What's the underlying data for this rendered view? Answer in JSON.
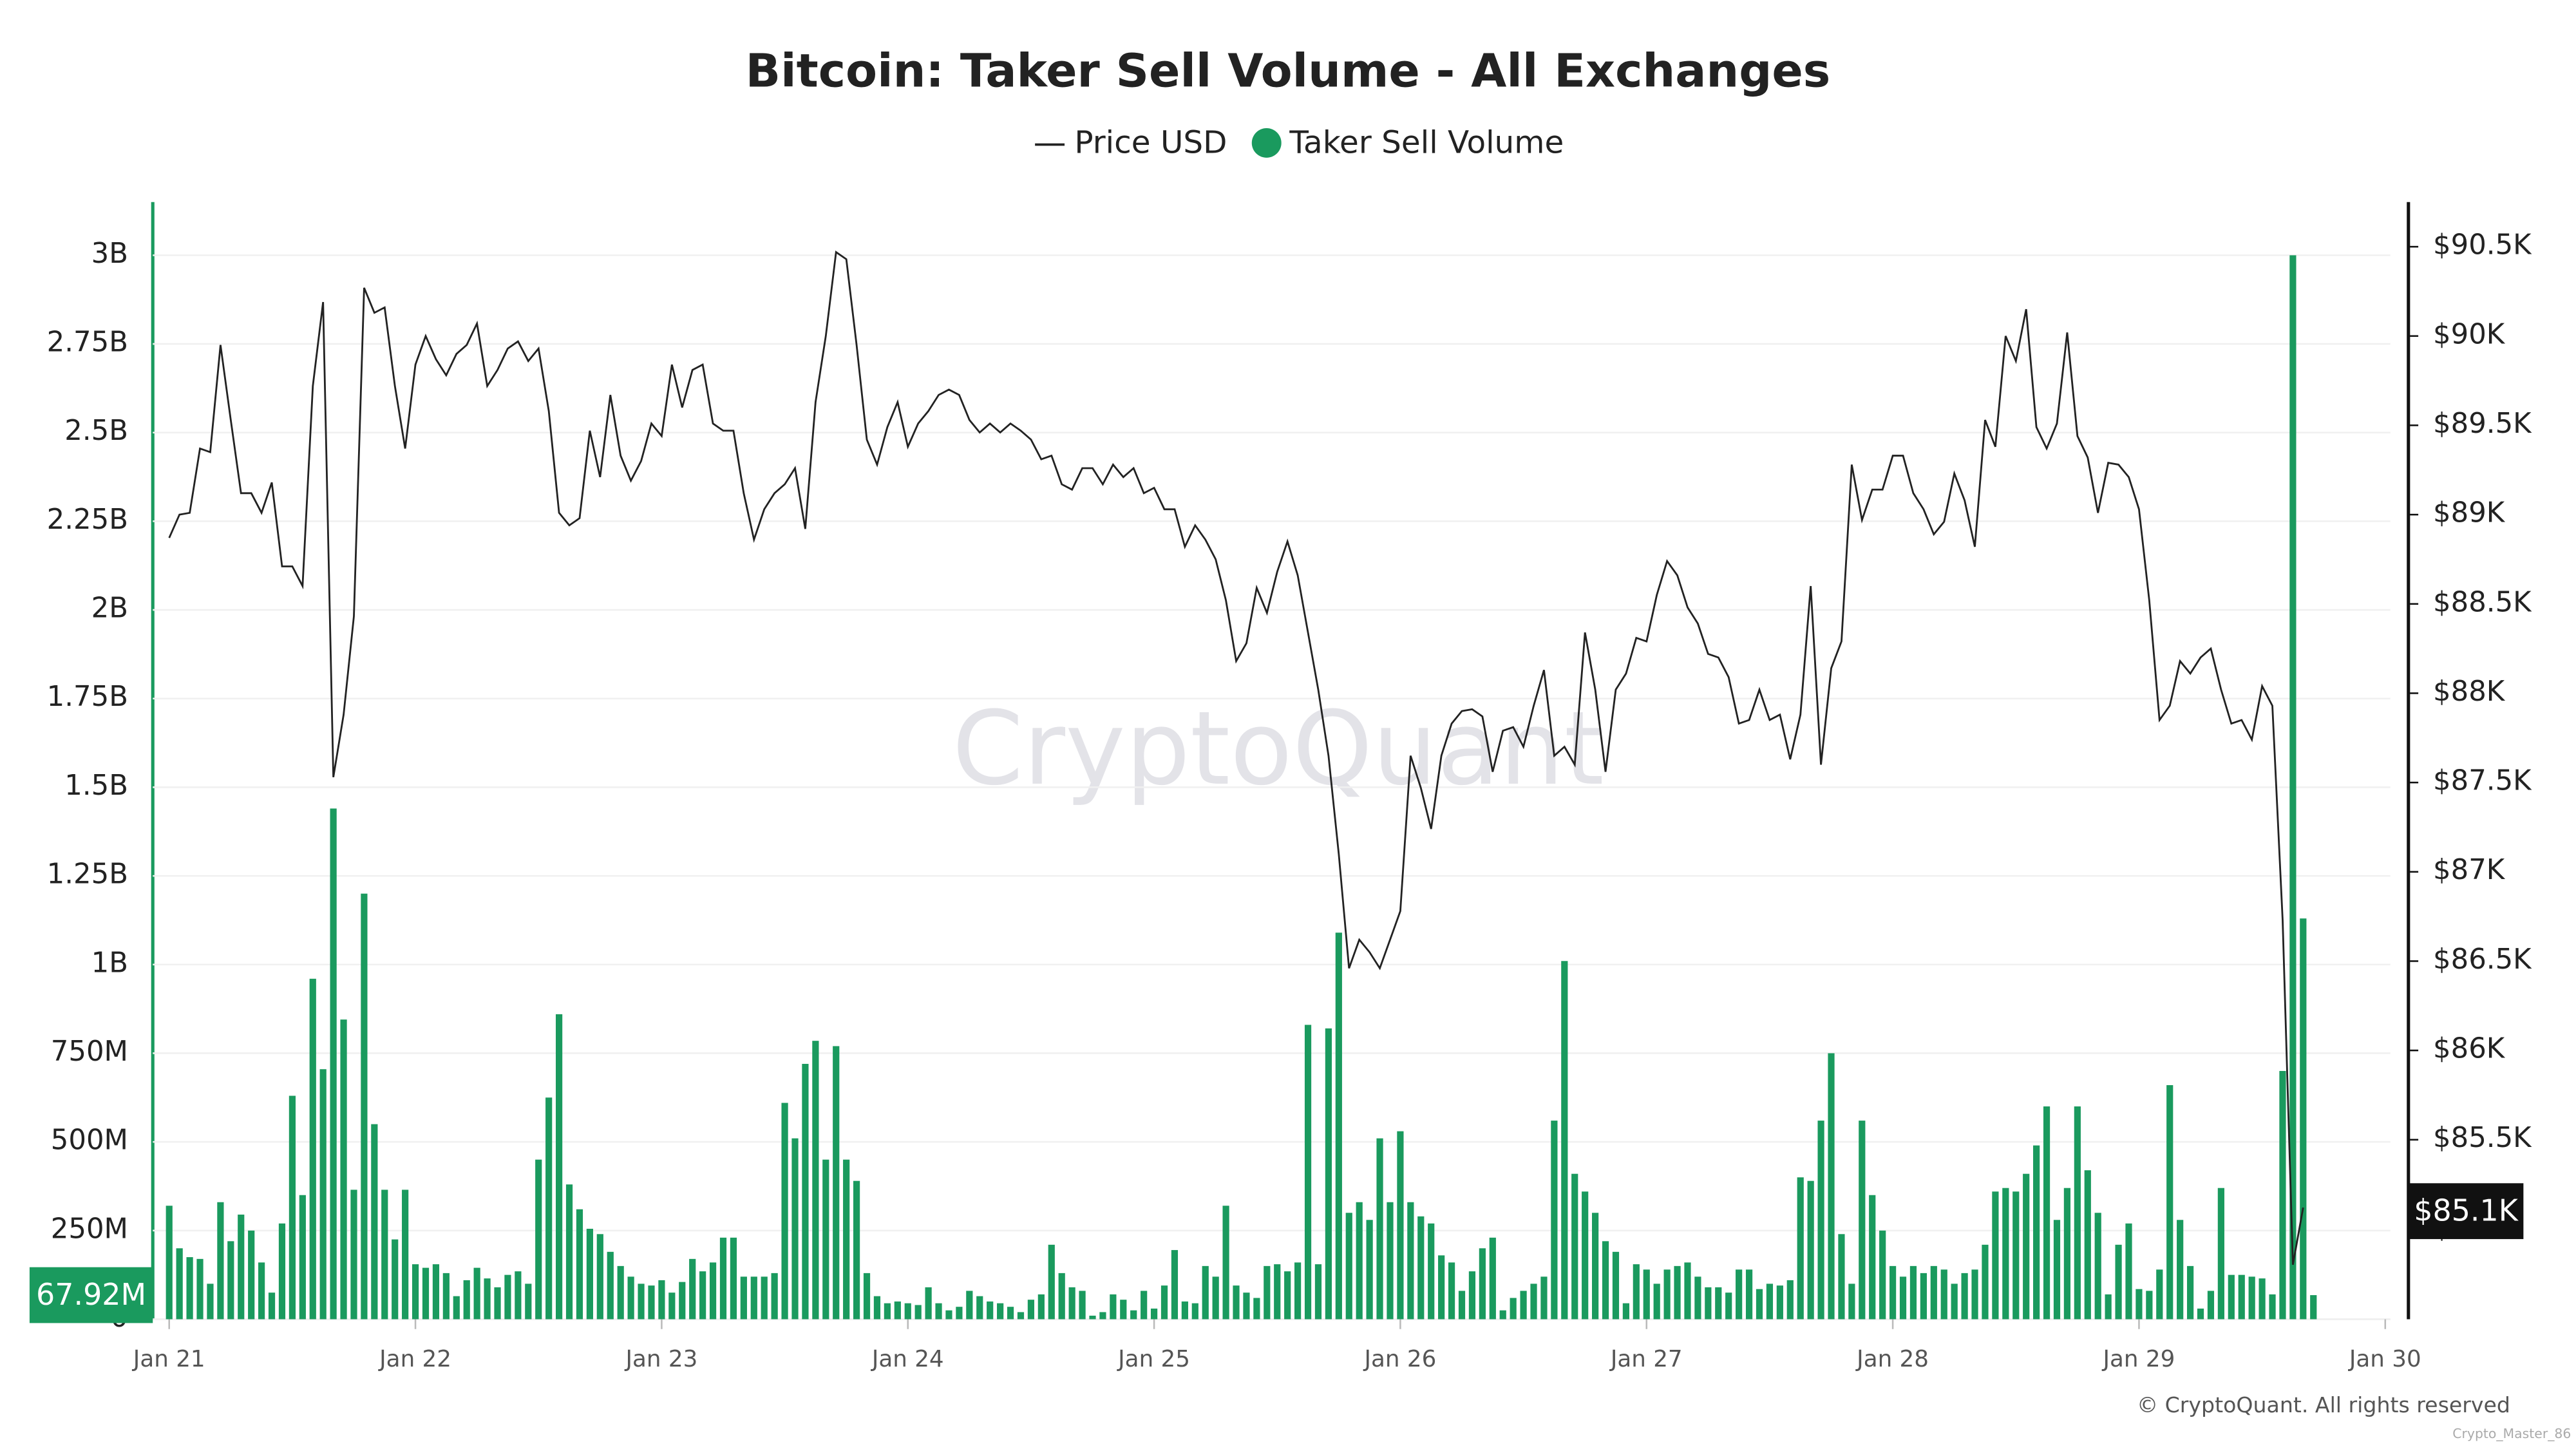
{
  "chart_data": {
    "type": "combo",
    "title": "Bitcoin: Taker Sell Volume - All Exchanges",
    "watermark": "CryptoQuant",
    "footer": "© CryptoQuant. All rights reserved",
    "credit": "Crypto_Master_86",
    "legend": "top",
    "grid": true,
    "xlim": [
      -1.6,
      216.5
    ],
    "xticks": [
      {
        "value": 0,
        "label": "Jan 21"
      },
      {
        "value": 24,
        "label": "Jan 22"
      },
      {
        "value": 48,
        "label": "Jan 23"
      },
      {
        "value": 72,
        "label": "Jan 24"
      },
      {
        "value": 96,
        "label": "Jan 25"
      },
      {
        "value": 120,
        "label": "Jan 26"
      },
      {
        "value": 144,
        "label": "Jan 27"
      },
      {
        "value": 168,
        "label": "Jan 28"
      },
      {
        "value": 192,
        "label": "Jan 29"
      },
      {
        "value": 216,
        "label": "Jan 30"
      }
    ],
    "ylim": [
      0,
      3150000000
    ],
    "yticks": [
      0,
      {
        "value": 250000000,
        "label": "250M"
      },
      {
        "value": 500000000,
        "label": "500M"
      },
      {
        "value": 750000000,
        "label": "750M"
      },
      {
        "value": 1000000000,
        "label": "1B"
      },
      {
        "value": 1250000000,
        "label": "1.25B"
      },
      {
        "value": 1500000000,
        "label": "1.5B"
      },
      {
        "value": 1750000000,
        "label": "1.75B"
      },
      {
        "value": 2000000000,
        "label": "2B"
      },
      {
        "value": 2250000000,
        "label": "2.25B"
      },
      {
        "value": 2500000000,
        "label": "2.5B"
      },
      {
        "value": 2750000000,
        "label": "2.75B"
      },
      {
        "value": 3000000000,
        "label": "3B"
      }
    ],
    "y2lim": [
      84495,
      90750
    ],
    "y2ticks": [
      {
        "value": 85000,
        "label": "$85K"
      },
      {
        "value": 85500,
        "label": "$85.5K"
      },
      {
        "value": 86000,
        "label": "$86K"
      },
      {
        "value": 86500,
        "label": "$86.5K"
      },
      {
        "value": 87000,
        "label": "$87K"
      },
      {
        "value": 87500,
        "label": "$87.5K"
      },
      {
        "value": 88000,
        "label": "$88K"
      },
      {
        "value": 88500,
        "label": "$88.5K"
      },
      {
        "value": 89000,
        "label": "$89K"
      },
      {
        "value": 89500,
        "label": "$89.5K"
      },
      {
        "value": 90000,
        "label": "$90K"
      },
      {
        "value": 90500,
        "label": "$90.5K"
      }
    ],
    "annotations": [
      {
        "value": 85100,
        "label": "$85.1K",
        "axis": "y2",
        "color": "#111111"
      },
      {
        "value": 67920000,
        "label": "67.92M",
        "axis": "y",
        "color": "#1a9a5e"
      }
    ],
    "series": [
      {
        "name": "Price USD",
        "type": "line",
        "axis": "y2",
        "color": "#222222",
        "values": [
          88870,
          89000,
          89010,
          89370,
          89350,
          89950,
          89530,
          89120,
          89120,
          89010,
          89180,
          88710,
          88710,
          88600,
          89720,
          90190,
          87530,
          87880,
          88430,
          90270,
          90130,
          90160,
          89720,
          89370,
          89840,
          90000,
          89870,
          89780,
          89900,
          89950,
          90070,
          89720,
          89810,
          89930,
          89970,
          89860,
          89930,
          89580,
          89010,
          88940,
          88980,
          89470,
          89210,
          89670,
          89330,
          89190,
          89300,
          89510,
          89440,
          89840,
          89600,
          89810,
          89840,
          89510,
          89470,
          89470,
          89120,
          88860,
          89030,
          89120,
          89170,
          89260,
          88920,
          89630,
          90000,
          90470,
          90430,
          89950,
          89420,
          89280,
          89490,
          89630,
          89380,
          89510,
          89580,
          89670,
          89700,
          89670,
          89530,
          89460,
          89510,
          89460,
          89510,
          89470,
          89420,
          89310,
          89330,
          89170,
          89140,
          89260,
          89260,
          89170,
          89280,
          89210,
          89260,
          89120,
          89150,
          89030,
          89030,
          88820,
          88940,
          88860,
          88750,
          88520,
          88180,
          88280,
          88590,
          88450,
          88680,
          88850,
          88660,
          88340,
          88020,
          87650,
          87100,
          86460,
          86620,
          86550,
          86460,
          86620,
          86780,
          87650,
          87470,
          87240,
          87650,
          87830,
          87900,
          87910,
          87870,
          87560,
          87790,
          87810,
          87700,
          87930,
          88130,
          87650,
          87700,
          87600,
          88340,
          88020,
          87560,
          88020,
          88110,
          88310,
          88290,
          88550,
          88740,
          88660,
          88480,
          88390,
          88220,
          88200,
          88090,
          87830,
          87850,
          88020,
          87850,
          87880,
          87630,
          87880,
          88600,
          87600,
          88140,
          88290,
          89280,
          88970,
          89140,
          89140,
          89330,
          89330,
          89120,
          89030,
          88890,
          88960,
          89230,
          89080,
          88820,
          89530,
          89380,
          90000,
          89860,
          90150,
          89490,
          89370,
          89510,
          90020,
          89440,
          89320,
          89010,
          89290,
          89280,
          89210,
          89030,
          88520,
          87850,
          87930,
          88180,
          88110,
          88200,
          88250,
          88020,
          87830,
          87850,
          87740,
          88040,
          87930,
          86730,
          84800,
          85120,
          null
        ]
      },
      {
        "name": "Taker Sell Volume",
        "type": "bar",
        "axis": "y",
        "color": "#1a9a5e",
        "values": [
          320000000,
          200000000,
          175000000,
          170000000,
          100000000,
          330000000,
          220000000,
          295000000,
          250000000,
          160000000,
          75000000,
          270000000,
          630000000,
          350000000,
          960000000,
          705000000,
          1440000000,
          845000000,
          365000000,
          1200000000,
          550000000,
          365000000,
          225000000,
          365000000,
          155000000,
          145000000,
          155000000,
          130000000,
          65000000,
          110000000,
          145000000,
          115000000,
          90000000,
          125000000,
          135000000,
          100000000,
          450000000,
          625000000,
          860000000,
          380000000,
          310000000,
          255000000,
          240000000,
          190000000,
          150000000,
          120000000,
          100000000,
          95000000,
          110000000,
          75000000,
          105000000,
          170000000,
          135000000,
          160000000,
          230000000,
          230000000,
          120000000,
          120000000,
          120000000,
          130000000,
          610000000,
          510000000,
          720000000,
          785000000,
          450000000,
          770000000,
          450000000,
          390000000,
          130000000,
          65000000,
          45000000,
          50000000,
          45000000,
          40000000,
          90000000,
          45000000,
          25000000,
          35000000,
          80000000,
          65000000,
          50000000,
          45000000,
          35000000,
          20000000,
          55000000,
          70000000,
          210000000,
          130000000,
          90000000,
          80000000,
          10000000,
          20000000,
          70000000,
          55000000,
          25000000,
          80000000,
          30000000,
          95000000,
          195000000,
          50000000,
          45000000,
          150000000,
          120000000,
          320000000,
          95000000,
          75000000,
          60000000,
          150000000,
          155000000,
          135000000,
          160000000,
          830000000,
          155000000,
          820000000,
          1090000000,
          300000000,
          330000000,
          280000000,
          510000000,
          330000000,
          530000000,
          330000000,
          290000000,
          270000000,
          180000000,
          160000000,
          80000000,
          135000000,
          200000000,
          230000000,
          25000000,
          60000000,
          80000000,
          100000000,
          120000000,
          560000000,
          1010000000,
          410000000,
          360000000,
          300000000,
          220000000,
          190000000,
          45000000,
          155000000,
          140000000,
          100000000,
          140000000,
          150000000,
          160000000,
          120000000,
          90000000,
          90000000,
          75000000,
          140000000,
          140000000,
          85000000,
          100000000,
          95000000,
          110000000,
          400000000,
          390000000,
          560000000,
          750000000,
          240000000,
          100000000,
          560000000,
          350000000,
          250000000,
          150000000,
          120000000,
          150000000,
          130000000,
          150000000,
          140000000,
          100000000,
          130000000,
          140000000,
          210000000,
          360000000,
          370000000,
          360000000,
          410000000,
          490000000,
          600000000,
          280000000,
          370000000,
          600000000,
          420000000,
          300000000,
          70000000,
          210000000,
          270000000,
          85000000,
          80000000,
          140000000,
          660000000,
          280000000,
          150000000,
          30000000,
          80000000,
          370000000,
          125000000,
          125000000,
          120000000,
          115000000,
          70000000,
          700000000,
          3000000000,
          1130000000,
          67920000
        ]
      }
    ]
  }
}
